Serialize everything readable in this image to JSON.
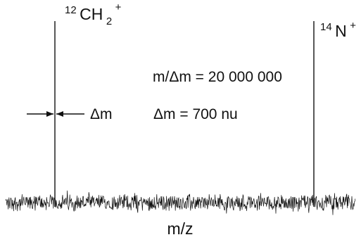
{
  "chart_data": {
    "type": "line",
    "title": "",
    "xlabel": "m/z",
    "ylabel": "",
    "axis": "none",
    "grid": false,
    "legend": "none",
    "peaks": [
      {
        "name": "CH2+",
        "label_mass": "12",
        "label_element": "CH",
        "label_sub": "2",
        "label_charge": "+",
        "relative_intensity": 1.0
      },
      {
        "name": "N+",
        "label_mass": "14",
        "label_element": "N",
        "label_charge": "+",
        "relative_intensity": 1.0
      }
    ],
    "annotations": {
      "resolving_power": "m/Δm = 20 000 000",
      "width_marker": "Δm",
      "width_value": "Δm = 700 nu"
    },
    "colors": {
      "ink": "#111111"
    }
  }
}
